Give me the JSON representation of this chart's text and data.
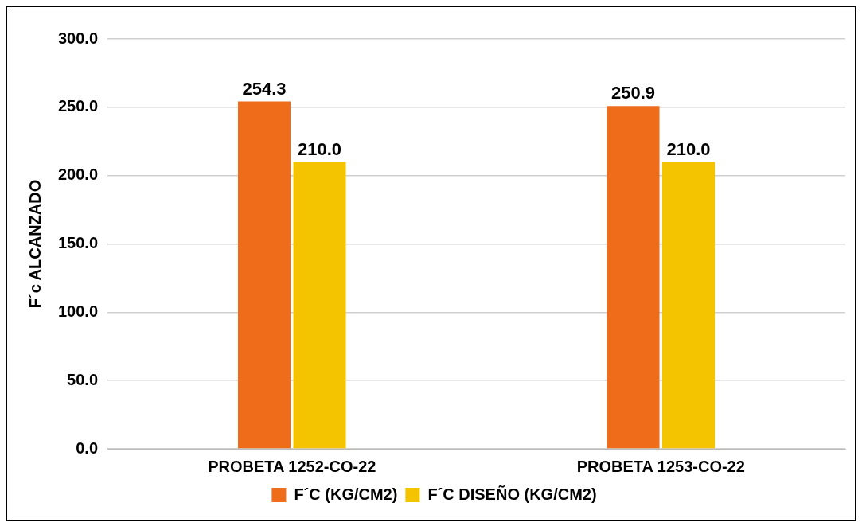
{
  "chart_data": {
    "type": "bar",
    "categories": [
      "PROBETA 1252-CO-22",
      "PROBETA 1253-CO-22"
    ],
    "series": [
      {
        "name": "F´C (KG/CM2)",
        "color": "#ee6c1a",
        "values": [
          254.3,
          250.9
        ],
        "value_labels": [
          "254.3",
          "250.9"
        ]
      },
      {
        "name": "F´C DISEÑO (KG/CM2)",
        "color": "#f5c400",
        "values": [
          210.0,
          210.0
        ],
        "value_labels": [
          "210.0",
          "210.0"
        ]
      }
    ],
    "ylabel": "F´c ALCANZADO",
    "ylim": [
      0,
      300
    ],
    "yticks": [
      {
        "value": 0,
        "label": "0.0"
      },
      {
        "value": 50,
        "label": "50.0"
      },
      {
        "value": 100,
        "label": "100.0"
      },
      {
        "value": 150,
        "label": "150.0"
      },
      {
        "value": 200,
        "label": "200.0"
      },
      {
        "value": 250,
        "label": "250.0"
      },
      {
        "value": 300,
        "label": "300.0"
      }
    ],
    "grid": "y",
    "legend": "bottom"
  }
}
